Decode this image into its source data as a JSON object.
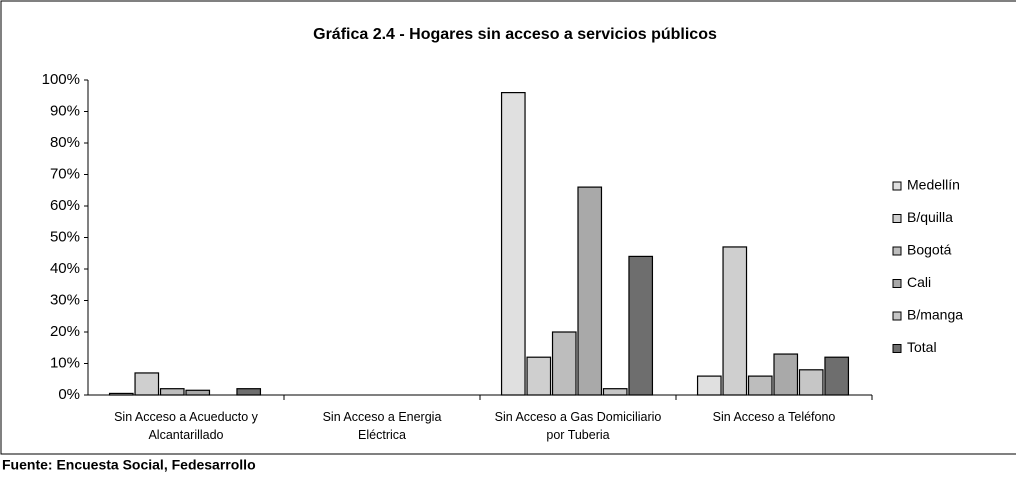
{
  "chart_data": {
    "type": "bar",
    "title": "Gráfica 2.4 - Hogares sin acceso a servicios públicos",
    "categories": [
      "Sin Acceso a Acueducto y Alcantarillado",
      "Sin Acceso a Energia Eléctrica",
      "Sin Acceso a Gas Domiciliario por Tuberia",
      "Sin Acceso a Teléfono"
    ],
    "series": [
      {
        "name": "Medellín",
        "color": "#e0e0e0",
        "values": [
          0.5,
          0,
          96,
          6
        ]
      },
      {
        "name": "B/quilla",
        "color": "#cfcfcf",
        "values": [
          7,
          0,
          12,
          47
        ]
      },
      {
        "name": "Bogotá",
        "color": "#bdbdbd",
        "values": [
          2,
          0,
          20,
          6
        ]
      },
      {
        "name": "Cali",
        "color": "#a9a9a9",
        "values": [
          1.5,
          0,
          66,
          13
        ]
      },
      {
        "name": "B/manga",
        "color": "#c6c6c6",
        "values": [
          0,
          0,
          2,
          8
        ]
      },
      {
        "name": "Total",
        "color": "#6e6e6e",
        "values": [
          2,
          0,
          44,
          12
        ]
      }
    ],
    "ylim": [
      0,
      100
    ],
    "yticks": [
      {
        "value": 0,
        "label": "0%"
      },
      {
        "value": 10,
        "label": "10%"
      },
      {
        "value": 20,
        "label": "20%"
      },
      {
        "value": 30,
        "label": "30%"
      },
      {
        "value": 40,
        "label": "40%"
      },
      {
        "value": 50,
        "label": "50%"
      },
      {
        "value": 60,
        "label": "60%"
      },
      {
        "value": 70,
        "label": "70%"
      },
      {
        "value": 80,
        "label": "80%"
      },
      {
        "value": 90,
        "label": "90%"
      },
      {
        "value": 100,
        "label": "100%"
      }
    ],
    "grid": false,
    "legend": "right",
    "source": "Fuente: Encuesta Social, Fedesarrollo"
  }
}
